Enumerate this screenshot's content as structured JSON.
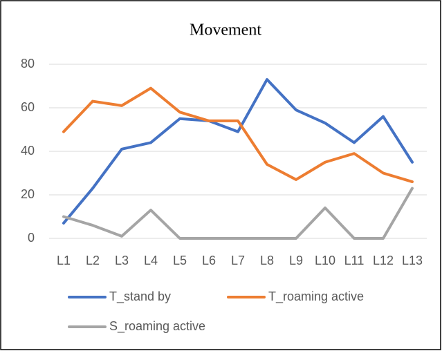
{
  "chart_data": {
    "type": "line",
    "title": "Movement",
    "categories": [
      "L1",
      "L2",
      "L3",
      "L4",
      "L5",
      "L6",
      "L7",
      "L8",
      "L9",
      "L10",
      "L11",
      "L12",
      "L13"
    ],
    "series": [
      {
        "name": "T_stand by",
        "color": "#4472c4",
        "values": [
          7,
          23,
          41,
          44,
          55,
          54,
          49,
          73,
          59,
          53,
          44,
          56,
          35
        ]
      },
      {
        "name": "T_roaming active",
        "color": "#ed7d31",
        "values": [
          49,
          63,
          61,
          69,
          58,
          54,
          54,
          34,
          27,
          35,
          39,
          30,
          26
        ]
      },
      {
        "name": "S_roaming active",
        "color": "#a5a5a5",
        "values": [
          10,
          6,
          1,
          13,
          0,
          0,
          0,
          0,
          0,
          14,
          0,
          0,
          23
        ]
      }
    ],
    "ylim": [
      0,
      80
    ],
    "yticks": [
      0,
      20,
      40,
      60,
      80
    ],
    "grid": true
  }
}
